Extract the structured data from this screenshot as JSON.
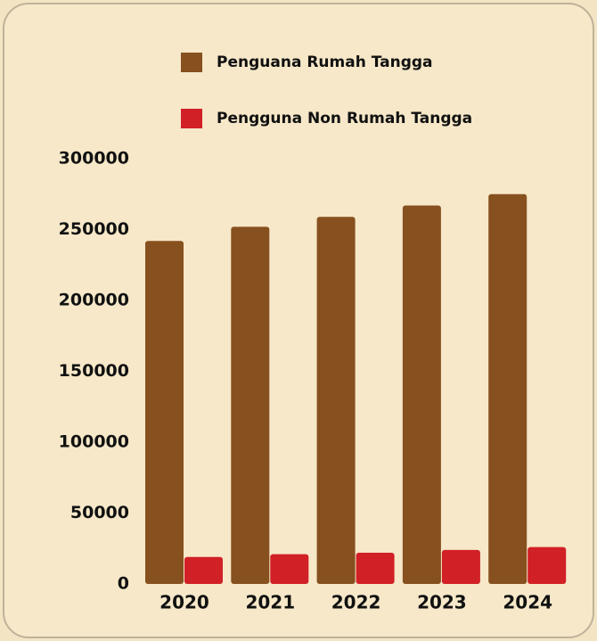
{
  "chart_data": {
    "type": "bar",
    "categories": [
      "2020",
      "2021",
      "2022",
      "2023",
      "2024"
    ],
    "series": [
      {
        "name": "Penguana Rumah Tangga",
        "color": "#87501f",
        "values": [
          242000,
          252000,
          259000,
          267000,
          275000
        ]
      },
      {
        "name": "Pengguna Non Rumah Tangga",
        "color": "#d12026",
        "values": [
          19000,
          21000,
          22000,
          24000,
          26000
        ]
      }
    ],
    "ylim": [
      0,
      300000
    ],
    "yticks": [
      0,
      50000,
      100000,
      150000,
      200000,
      250000,
      300000
    ],
    "grid": false
  }
}
